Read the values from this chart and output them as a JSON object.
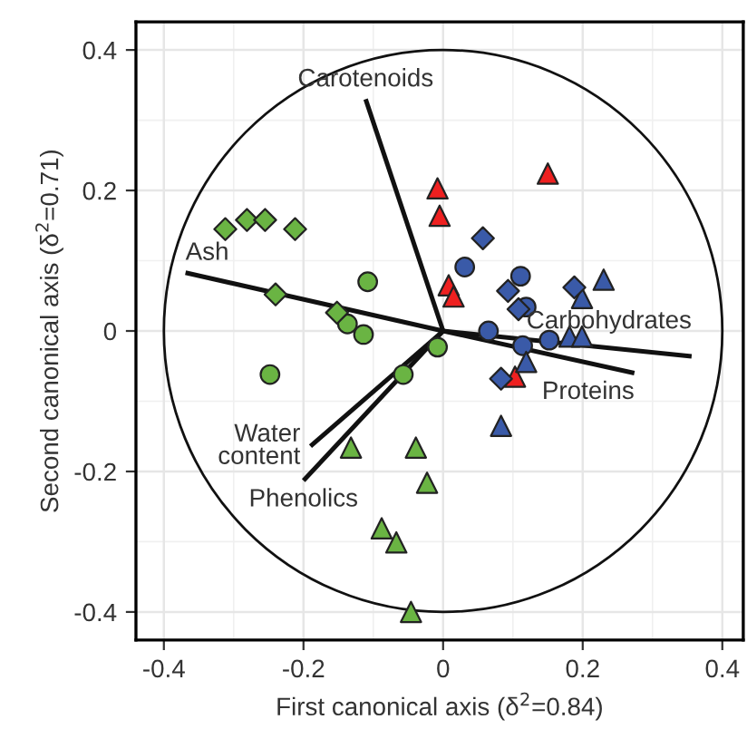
{
  "chart_data": {
    "type": "scatter",
    "xlabel": "First canonical axis (δ$^{2}$=0.84)",
    "ylabel": "Second canonical axis (δ$^{2}$=0.71)",
    "xlim": [
      -0.44,
      0.43
    ],
    "ylim": [
      -0.44,
      0.44
    ],
    "xticks": [
      -0.4,
      -0.2,
      0,
      0.2,
      0.4
    ],
    "yticks": [
      -0.4,
      -0.2,
      0,
      0.2,
      0.4
    ],
    "grid": true,
    "series": [
      {
        "color": "#6ab443",
        "marker": "diamond",
        "x": [
          -0.312,
          -0.281,
          -0.255,
          -0.212,
          -0.24,
          -0.152
        ],
        "values": [
          0.145,
          0.158,
          0.158,
          0.145,
          0.052,
          0.026
        ]
      },
      {
        "color": "#6ab443",
        "marker": "circle",
        "x": [
          -0.108,
          -0.137,
          -0.114,
          -0.248,
          -0.057,
          -0.008
        ],
        "values": [
          0.07,
          0.01,
          -0.005,
          -0.062,
          -0.062,
          -0.023
        ]
      },
      {
        "color": "#6ab443",
        "marker": "triangle",
        "x": [
          -0.132,
          -0.039,
          -0.023,
          -0.088,
          -0.067,
          -0.046
        ],
        "values": [
          -0.166,
          -0.166,
          -0.216,
          -0.281,
          -0.301,
          -0.4
        ]
      },
      {
        "color": "#ee2020",
        "marker": "triangle",
        "x": [
          -0.008,
          -0.005,
          0.15,
          0.008,
          0.015,
          0.103
        ],
        "values": [
          0.203,
          0.164,
          0.224,
          0.065,
          0.049,
          -0.065
        ]
      },
      {
        "color": "#3a5aa8",
        "marker": "diamond",
        "x": [
          0.057,
          0.093,
          0.108,
          0.188,
          0.083
        ],
        "values": [
          0.132,
          0.057,
          0.031,
          0.062,
          -0.068
        ]
      },
      {
        "color": "#3a5aa8",
        "marker": "circle",
        "x": [
          0.031,
          0.111,
          0.119,
          0.065,
          0.114,
          0.152
        ],
        "values": [
          0.091,
          0.078,
          0.034,
          0.0,
          -0.021,
          -0.013
        ]
      },
      {
        "color": "#3a5aa8",
        "marker": "triangle",
        "x": [
          0.23,
          0.199,
          0.181,
          0.199,
          0.119,
          0.083
        ],
        "values": [
          0.073,
          0.047,
          -0.008,
          -0.008,
          -0.044,
          -0.135
        ]
      },
      {
        "type": "line",
        "name": "Carotenoids",
        "color": "#111111",
        "x": [
          0,
          -0.111
        ],
        "values": [
          0,
          0.33
        ]
      },
      {
        "type": "line",
        "name": "Ash",
        "color": "#111111",
        "x": [
          0,
          -0.369
        ],
        "values": [
          0,
          0.083
        ]
      },
      {
        "type": "line",
        "name": "Carbohydrates",
        "color": "#111111",
        "x": [
          0,
          0.356
        ],
        "values": [
          0,
          -0.036
        ]
      },
      {
        "type": "line",
        "name": "Proteins",
        "color": "#111111",
        "x": [
          0,
          0.274
        ],
        "values": [
          0,
          -0.06
        ]
      },
      {
        "type": "line",
        "name": "Water\ncontent",
        "color": "#111111",
        "x": [
          0,
          -0.19
        ],
        "values": [
          0,
          -0.164
        ]
      },
      {
        "type": "line",
        "name": "Phenolics",
        "color": "#111111",
        "x": [
          0,
          -0.2
        ],
        "values": [
          0,
          -0.213
        ]
      }
    ]
  }
}
